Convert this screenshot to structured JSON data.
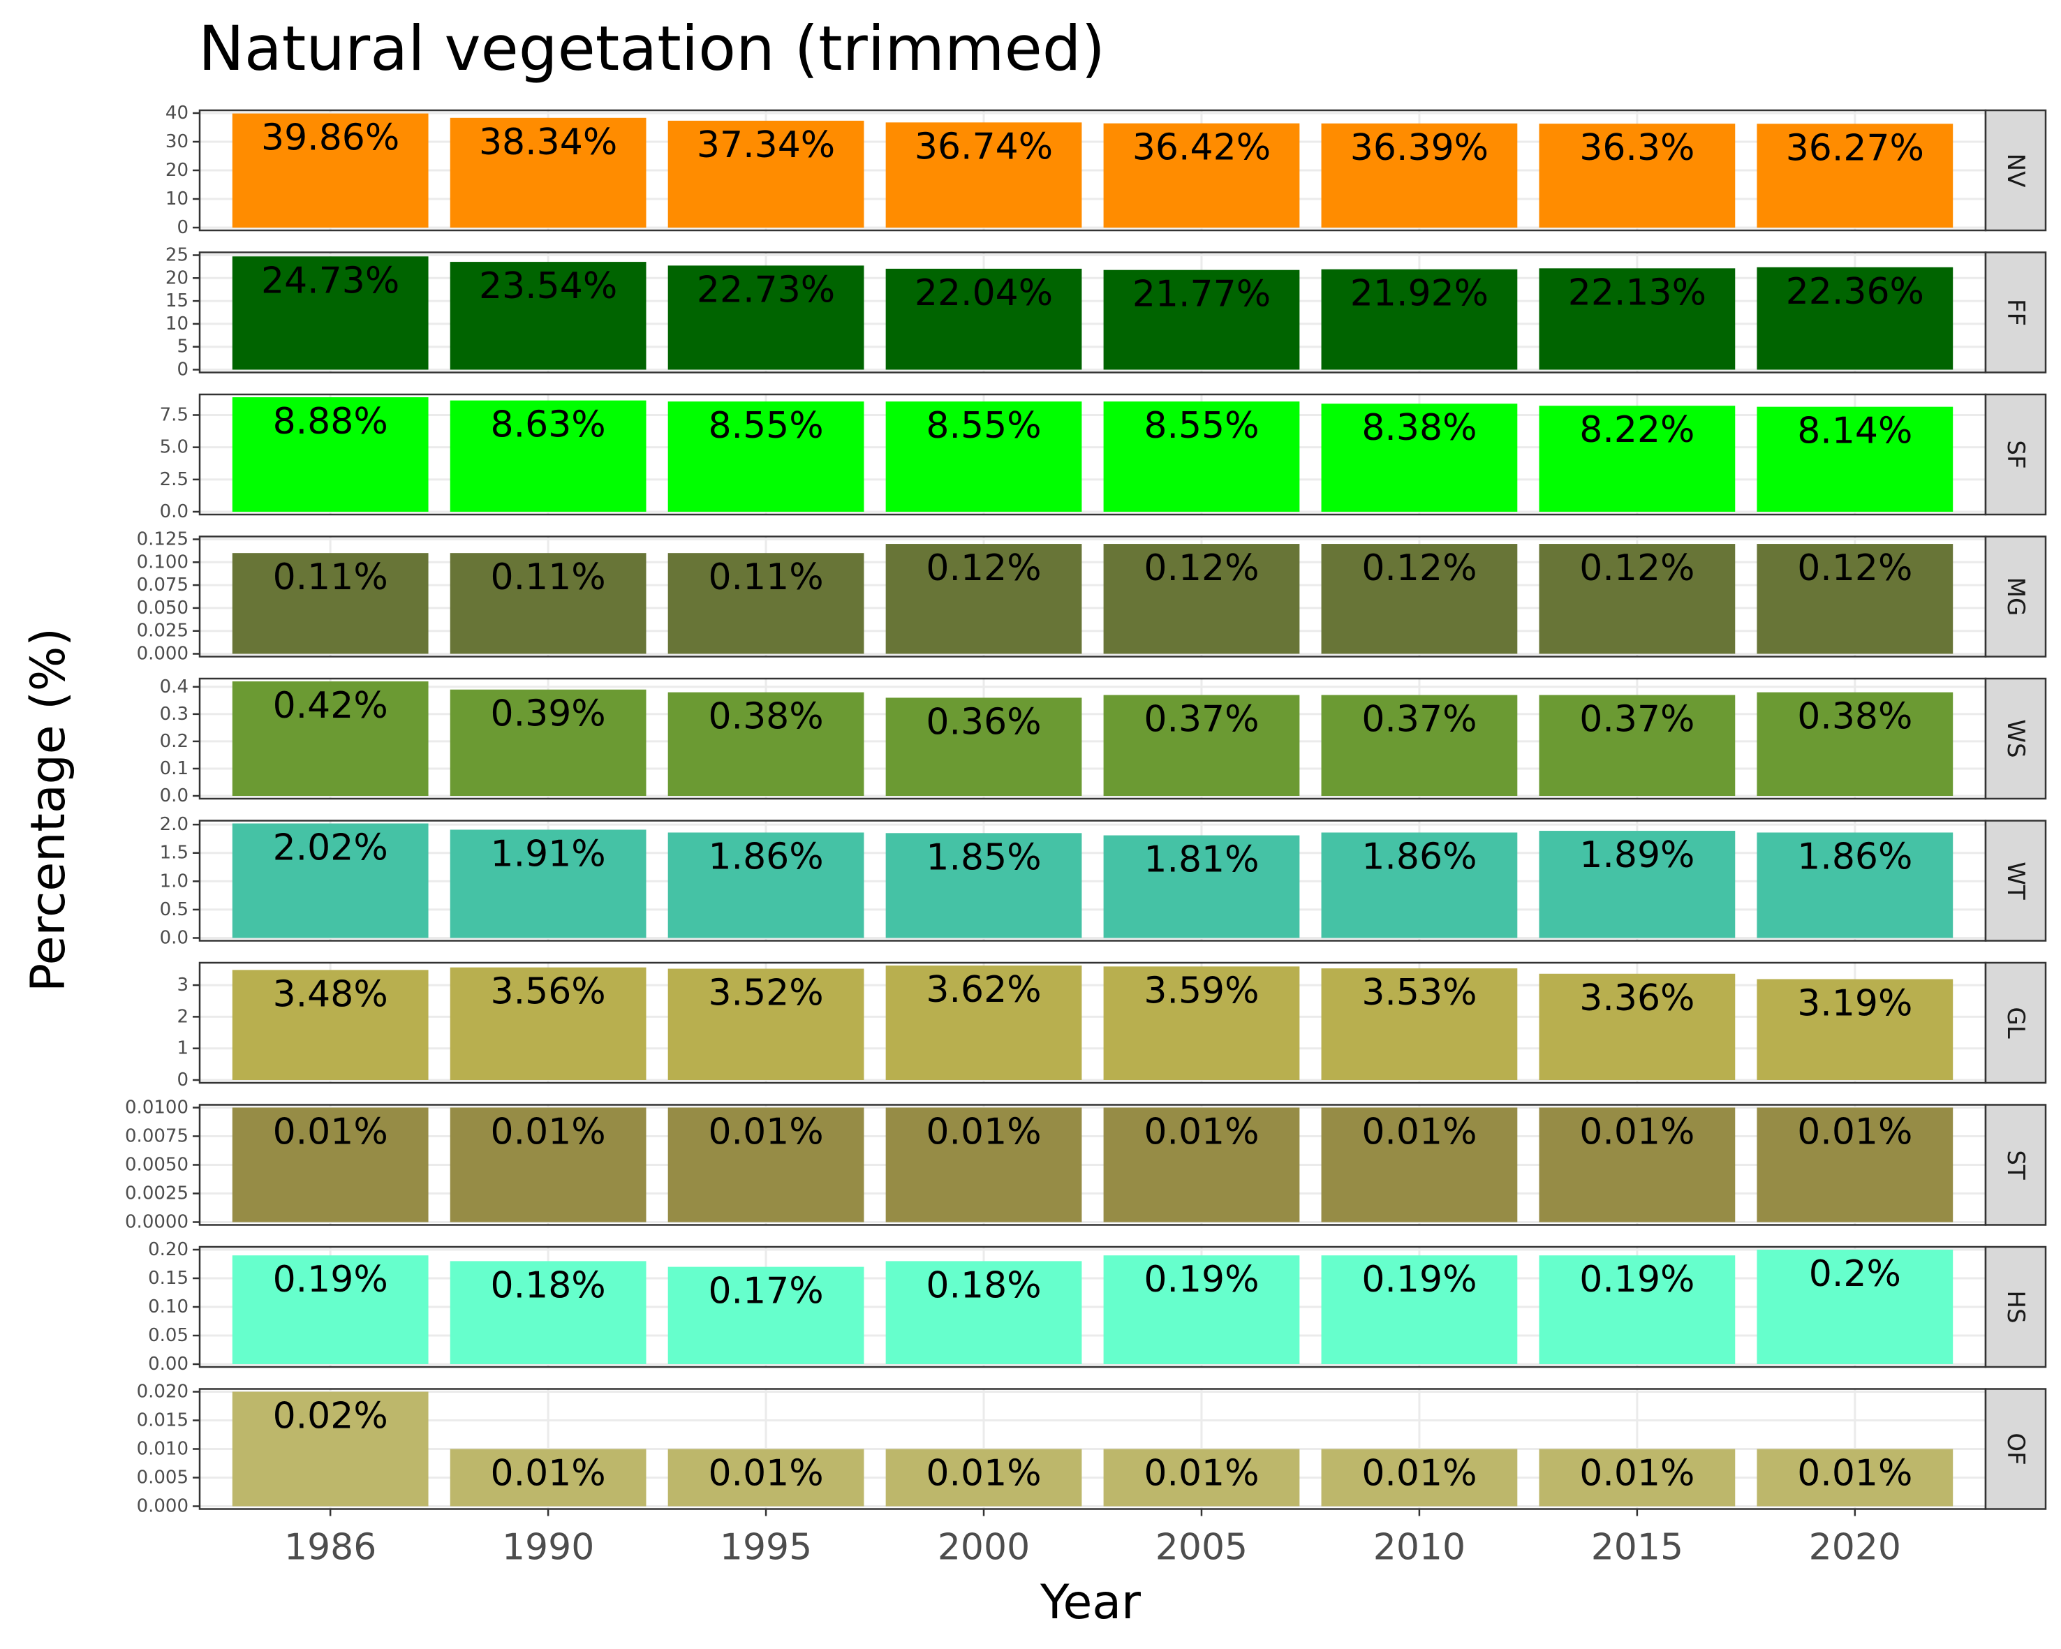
{
  "chart_data": {
    "type": "bar",
    "title": "Natural vegetation (trimmed)",
    "xlabel": "Year",
    "ylabel": "Percentage (%)",
    "categories": [
      "1986",
      "1990",
      "1995",
      "2000",
      "2005",
      "2010",
      "2015",
      "2020"
    ],
    "grid": true,
    "facets": [
      {
        "name": "NV",
        "color": "#FF8C00",
        "ylim": [
          0,
          40
        ],
        "ticks": [
          "0",
          "10",
          "20",
          "30",
          "40"
        ],
        "values": [
          39.86,
          38.34,
          37.34,
          36.74,
          36.42,
          36.39,
          36.3,
          36.27
        ],
        "labels": [
          "39.86%",
          "38.34%",
          "37.34%",
          "36.74%",
          "36.42%",
          "36.39%",
          "36.3%",
          "36.27%"
        ]
      },
      {
        "name": "FF",
        "color": "#006400",
        "ylim": [
          0,
          25
        ],
        "ticks": [
          "0",
          "5",
          "10",
          "15",
          "20",
          "25"
        ],
        "values": [
          24.73,
          23.54,
          22.73,
          22.04,
          21.77,
          21.92,
          22.13,
          22.36
        ],
        "labels": [
          "24.73%",
          "23.54%",
          "22.73%",
          "22.04%",
          "21.77%",
          "21.92%",
          "22.13%",
          "22.36%"
        ]
      },
      {
        "name": "SF",
        "color": "#00FF00",
        "ylim": [
          0,
          8.88
        ],
        "ticks": [
          "0.0",
          "2.5",
          "5.0",
          "7.5"
        ],
        "values": [
          8.88,
          8.63,
          8.55,
          8.55,
          8.55,
          8.38,
          8.22,
          8.14
        ],
        "labels": [
          "8.88%",
          "8.63%",
          "8.55%",
          "8.55%",
          "8.55%",
          "8.38%",
          "8.22%",
          "8.14%"
        ]
      },
      {
        "name": "MG",
        "color": "#687537",
        "ylim": [
          0,
          0.125
        ],
        "ticks": [
          "0.000",
          "0.025",
          "0.050",
          "0.075",
          "0.100",
          "0.125"
        ],
        "values": [
          0.11,
          0.11,
          0.11,
          0.12,
          0.12,
          0.12,
          0.12,
          0.12
        ],
        "labels": [
          "0.11%",
          "0.11%",
          "0.11%",
          "0.12%",
          "0.12%",
          "0.12%",
          "0.12%",
          "0.12%"
        ]
      },
      {
        "name": "WS",
        "color": "#6B9A33",
        "ylim": [
          0,
          0.42
        ],
        "ticks": [
          "0.0",
          "0.1",
          "0.2",
          "0.3",
          "0.4"
        ],
        "values": [
          0.42,
          0.39,
          0.38,
          0.36,
          0.37,
          0.37,
          0.37,
          0.38
        ],
        "labels": [
          "0.42%",
          "0.39%",
          "0.38%",
          "0.36%",
          "0.37%",
          "0.37%",
          "0.37%",
          "0.38%"
        ]
      },
      {
        "name": "WT",
        "color": "#45C2A5",
        "ylim": [
          0,
          2.02
        ],
        "ticks": [
          "0.0",
          "0.5",
          "1.0",
          "1.5",
          "2.0"
        ],
        "values": [
          2.02,
          1.91,
          1.86,
          1.85,
          1.81,
          1.86,
          1.89,
          1.86
        ],
        "labels": [
          "2.02%",
          "1.91%",
          "1.86%",
          "1.85%",
          "1.81%",
          "1.86%",
          "1.89%",
          "1.86%"
        ]
      },
      {
        "name": "GL",
        "color": "#B8AF4F",
        "ylim": [
          0,
          3.62
        ],
        "ticks": [
          "0",
          "1",
          "2",
          "3"
        ],
        "values": [
          3.48,
          3.56,
          3.52,
          3.62,
          3.59,
          3.53,
          3.36,
          3.19
        ],
        "labels": [
          "3.48%",
          "3.56%",
          "3.52%",
          "3.62%",
          "3.59%",
          "3.53%",
          "3.36%",
          "3.19%"
        ]
      },
      {
        "name": "ST",
        "color": "#968C46",
        "ylim": [
          0,
          0.01
        ],
        "ticks": [
          "0.0000",
          "0.0025",
          "0.0050",
          "0.0075",
          "0.0100"
        ],
        "values": [
          0.01,
          0.01,
          0.01,
          0.01,
          0.01,
          0.01,
          0.01,
          0.01
        ],
        "labels": [
          "0.01%",
          "0.01%",
          "0.01%",
          "0.01%",
          "0.01%",
          "0.01%",
          "0.01%",
          "0.01%"
        ]
      },
      {
        "name": "HS",
        "color": "#66FFCC",
        "ylim": [
          0,
          0.2
        ],
        "ticks": [
          "0.00",
          "0.05",
          "0.10",
          "0.15",
          "0.20"
        ],
        "values": [
          0.19,
          0.18,
          0.17,
          0.18,
          0.19,
          0.19,
          0.19,
          0.2
        ],
        "labels": [
          "0.19%",
          "0.18%",
          "0.17%",
          "0.18%",
          "0.19%",
          "0.19%",
          "0.19%",
          "0.2%"
        ]
      },
      {
        "name": "OF",
        "color": "#BDB76B",
        "ylim": [
          0,
          0.02
        ],
        "ticks": [
          "0.000",
          "0.005",
          "0.010",
          "0.015",
          "0.020"
        ],
        "values": [
          0.02,
          0.01,
          0.01,
          0.01,
          0.01,
          0.01,
          0.01,
          0.01
        ],
        "labels": [
          "0.02%",
          "0.01%",
          "0.01%",
          "0.01%",
          "0.01%",
          "0.01%",
          "0.01%",
          "0.01%"
        ]
      }
    ]
  }
}
